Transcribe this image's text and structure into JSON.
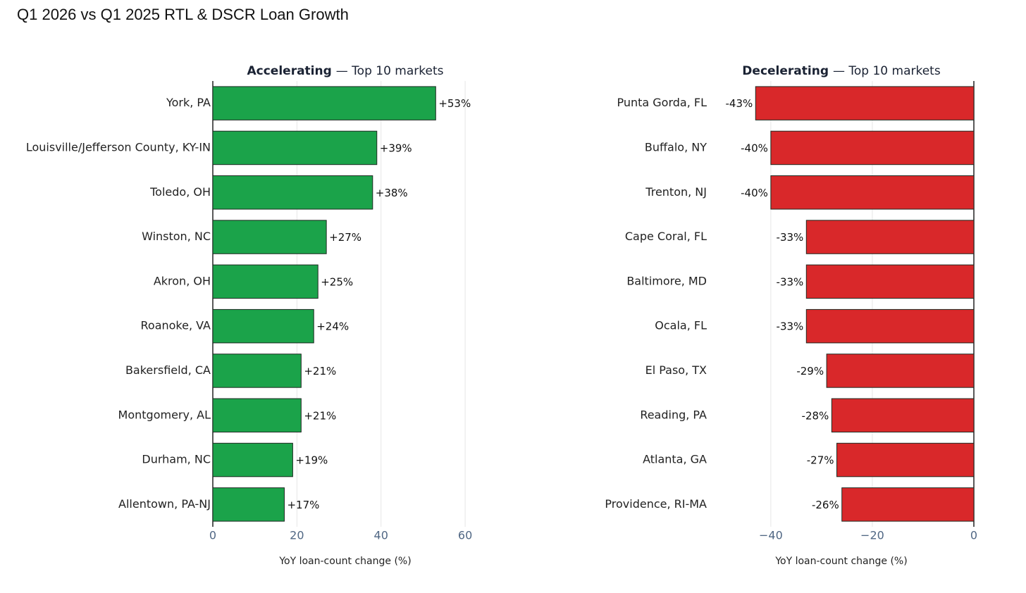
{
  "title": "Q1 2026 vs Q1 2025 RTL & DSCR Loan Growth",
  "chart_data": [
    {
      "type": "barh",
      "title": "Accelerating",
      "subtitle": "— Top 10 markets",
      "categories": [
        "York, PA",
        "Louisville/Jefferson County, KY-IN",
        "Toledo, OH",
        "Winston, NC",
        "Akron, OH",
        "Roanoke, VA",
        "Bakersfield, CA",
        "Montgomery, AL",
        "Durham, NC",
        "Allentown, PA-NJ"
      ],
      "values": [
        53,
        39,
        38,
        27,
        25,
        24,
        21,
        21,
        19,
        17
      ],
      "value_labels": [
        "+53%",
        "+39%",
        "+38%",
        "+27%",
        "+25%",
        "+24%",
        "+21%",
        "+21%",
        "+19%",
        "+17%"
      ],
      "color": "#1ba34a",
      "xlim": [
        0,
        63
      ],
      "xticks": [
        0,
        20,
        40,
        60
      ],
      "xlabel": "YoY loan-count change (%)",
      "grid": true
    },
    {
      "type": "barh",
      "title": "Decelerating",
      "subtitle": "— Top 10 markets",
      "categories": [
        "Punta Gorda, FL",
        "Buffalo, NY",
        "Trenton, NJ",
        "Cape Coral, FL",
        "Baltimore, MD",
        "Ocala, FL",
        "El Paso, TX",
        "Reading, PA",
        "Atlanta, GA",
        "Providence, RI-MA"
      ],
      "values": [
        -43,
        -40,
        -40,
        -33,
        -33,
        -33,
        -29,
        -28,
        -27,
        -26
      ],
      "value_labels": [
        "-43%",
        "-40%",
        "-40%",
        "-33%",
        "-33%",
        "-33%",
        "-29%",
        "-28%",
        "-27%",
        "-26%"
      ],
      "color": "#d9282a",
      "xlim": [
        -52.2,
        0
      ],
      "xticks": [
        {
          "value": -40,
          "label": "−40"
        },
        {
          "value": -20,
          "label": "−20"
        },
        0
      ],
      "xlabel": "YoY loan-count change (%)",
      "grid": true
    }
  ]
}
